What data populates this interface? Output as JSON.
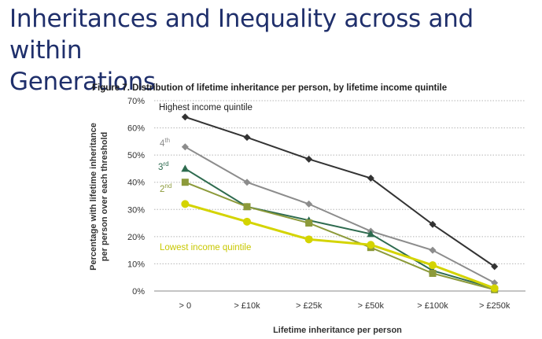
{
  "page": {
    "title_line1": "Inheritances and Inequality across and within",
    "title_line2": "Generations"
  },
  "chart_data": {
    "type": "line",
    "title": "Figure 7. Distribution of lifetime inheritance per person, by lifetime income quintile",
    "xlabel": "Lifetime inheritance per person",
    "ylabel_line1": "Percentage with lifetime inheritance",
    "ylabel_line2": "per person over each threshold",
    "categories": [
      "> 0",
      "> £10k",
      "> £25k",
      "> £50k",
      "> £100k",
      "> £250k"
    ],
    "ylim": [
      0,
      70
    ],
    "yticks": [
      "0%",
      "10%",
      "20%",
      "30%",
      "40%",
      "50%",
      "60%",
      "70%"
    ],
    "grid": true,
    "series": [
      {
        "name": "Highest income quintile",
        "color": "#333333",
        "marker": "diamond",
        "values": [
          64,
          56.5,
          48.5,
          41.5,
          24.5,
          9
        ]
      },
      {
        "name": "4",
        "sup": "th",
        "color": "#8c8c8c",
        "marker": "diamond",
        "values": [
          53,
          40,
          32,
          22,
          15,
          3
        ]
      },
      {
        "name": "3",
        "sup": "rd",
        "color": "#2e6b4f",
        "marker": "triangle",
        "values": [
          45,
          31,
          26,
          21,
          7.5,
          1
        ]
      },
      {
        "name": "2",
        "sup": "nd",
        "color": "#8c9a3a",
        "marker": "square",
        "values": [
          40,
          31,
          25,
          16,
          6.5,
          0.5
        ]
      },
      {
        "name": "Lowest income quintile",
        "color": "#d4d400",
        "marker": "circle",
        "values": [
          32,
          25.5,
          19,
          17,
          9.5,
          1
        ]
      }
    ]
  }
}
